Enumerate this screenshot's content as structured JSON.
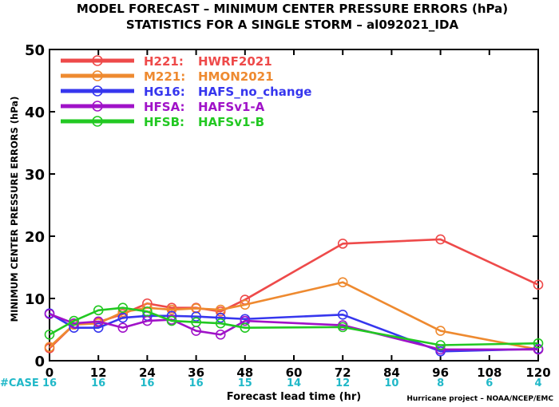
{
  "chart_data": {
    "type": "line",
    "title_line1": "MODEL FORECAST – MINIMUM CENTER PRESSURE ERRORS (hPa)",
    "title_line2": "STATISTICS FOR A SINGLE STORM – al092021_IDA",
    "ylabel": "MINIMUM CENTER PRESSURE ERRORS (hPa)",
    "xlabel": "Forecast lead time (hr)",
    "credit": "Hurricane project – NOAA/NCEP/EMC",
    "case_label": "#CASE",
    "xlim": [
      0,
      120
    ],
    "ylim": [
      0,
      50
    ],
    "xticks": [
      0,
      12,
      24,
      36,
      48,
      60,
      72,
      84,
      96,
      108,
      120
    ],
    "yticks": [
      0,
      10,
      20,
      30,
      40,
      50
    ],
    "x_lead_times": [
      0,
      6,
      12,
      18,
      24,
      30,
      36,
      42,
      48,
      72,
      96,
      120
    ],
    "case_counts": [
      {
        "x": 0,
        "n": "16"
      },
      {
        "x": 12,
        "n": "16"
      },
      {
        "x": 24,
        "n": "16"
      },
      {
        "x": 36,
        "n": "16"
      },
      {
        "x": 48,
        "n": "15"
      },
      {
        "x": 60,
        "n": "14"
      },
      {
        "x": 72,
        "n": "12"
      },
      {
        "x": 84,
        "n": "10"
      },
      {
        "x": 96,
        "n": "8"
      },
      {
        "x": 108,
        "n": "6"
      },
      {
        "x": 120,
        "n": "4"
      }
    ],
    "legend_position": "top-left",
    "series": [
      {
        "name": "H221:",
        "desc": "HWRF2021",
        "color": "#ee4a4a",
        "values": [
          2.0,
          5.8,
          6.2,
          7.5,
          9.2,
          8.5,
          8.5,
          7.9,
          9.8,
          18.8,
          19.5,
          12.2
        ]
      },
      {
        "name": "M221:",
        "desc": "HMON2021",
        "color": "#ee8a30",
        "values": [
          2.2,
          5.8,
          6.0,
          7.8,
          8.5,
          8.2,
          8.4,
          8.2,
          9.0,
          12.6,
          4.8,
          1.8
        ]
      },
      {
        "name": "HG16:",
        "desc": "HAFS_no_change",
        "color": "#3636ee",
        "values": [
          7.6,
          5.3,
          5.3,
          6.9,
          7.2,
          7.2,
          7.1,
          6.9,
          6.7,
          7.4,
          1.5,
          1.9
        ]
      },
      {
        "name": "HFSA:",
        "desc": "HAFSv1-A",
        "color": "#a012c8",
        "values": [
          7.5,
          6.0,
          6.3,
          5.3,
          6.4,
          6.6,
          4.8,
          4.2,
          6.4,
          5.7,
          1.8,
          1.8
        ]
      },
      {
        "name": "HFSB:",
        "desc": "HAFSv1-B",
        "color": "#22c822",
        "values": [
          4.2,
          6.4,
          8.1,
          8.5,
          7.9,
          6.4,
          6.2,
          6.0,
          5.3,
          5.4,
          2.5,
          2.8
        ]
      }
    ]
  }
}
